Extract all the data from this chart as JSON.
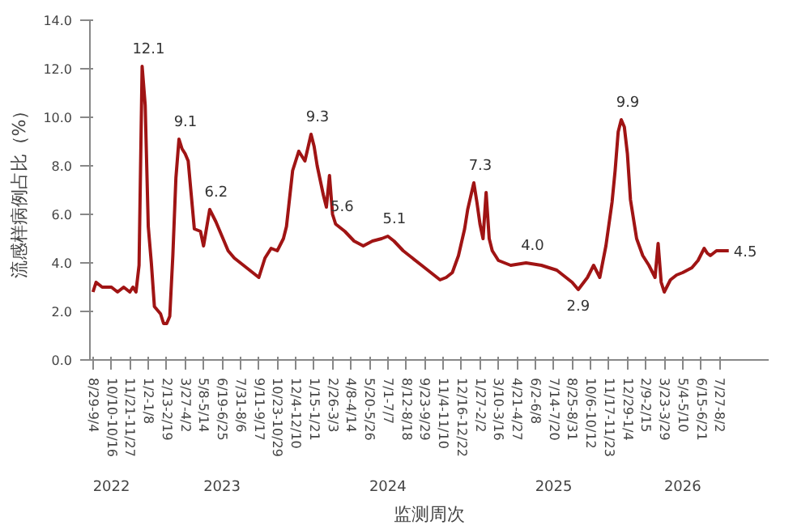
{
  "chart_data": {
    "type": "line",
    "xlabel": "监测周次",
    "ylabel": "流感样病例占比（%）",
    "x": [
      "2022-08-29",
      "2022-09-05",
      "2022-09-19",
      "2022-10-10",
      "2022-10-24",
      "2022-11-07",
      "2022-11-21",
      "2022-11-28",
      "2022-12-05",
      "2022-12-12",
      "2022-12-19",
      "2022-12-26",
      "2023-01-02",
      "2023-01-09",
      "2023-01-16",
      "2023-01-30",
      "2023-02-06",
      "2023-02-13",
      "2023-02-20",
      "2023-02-27",
      "2023-03-06",
      "2023-03-13",
      "2023-03-20",
      "2023-03-27",
      "2023-04-03",
      "2023-04-10",
      "2023-04-17",
      "2023-05-01",
      "2023-05-08",
      "2023-05-22",
      "2023-06-05",
      "2023-06-19",
      "2023-07-03",
      "2023-07-17",
      "2023-07-31",
      "2023-08-21",
      "2023-09-11",
      "2023-09-25",
      "2023-10-09",
      "2023-10-23",
      "2023-11-06",
      "2023-11-13",
      "2023-11-27",
      "2023-12-11",
      "2023-12-18",
      "2023-12-25",
      "2024-01-08",
      "2024-01-15",
      "2024-01-22",
      "2024-02-05",
      "2024-02-12",
      "2024-02-19",
      "2024-02-26",
      "2024-03-04",
      "2024-03-25",
      "2024-04-15",
      "2024-05-06",
      "2024-05-27",
      "2024-06-17",
      "2024-07-01",
      "2024-07-15",
      "2024-08-05",
      "2024-08-26",
      "2024-09-16",
      "2024-10-07",
      "2024-10-28",
      "2024-11-11",
      "2024-11-25",
      "2024-12-09",
      "2024-12-23",
      "2024-12-30",
      "2025-01-13",
      "2025-01-20",
      "2025-01-27",
      "2025-02-03",
      "2025-02-10",
      "2025-02-17",
      "2025-02-24",
      "2025-03-10",
      "2025-04-07",
      "2025-05-12",
      "2025-06-16",
      "2025-07-21",
      "2025-08-11",
      "2025-08-25",
      "2025-09-08",
      "2025-09-29",
      "2025-10-13",
      "2025-10-27",
      "2025-11-10",
      "2025-11-24",
      "2025-12-01",
      "2025-12-08",
      "2025-12-15",
      "2025-12-22",
      "2025-12-29",
      "2026-01-05",
      "2026-01-19",
      "2026-02-02",
      "2026-02-16",
      "2026-03-02",
      "2026-03-09",
      "2026-03-16",
      "2026-03-23",
      "2026-04-06",
      "2026-04-20",
      "2026-05-04",
      "2026-05-25",
      "2026-06-08",
      "2026-06-22",
      "2026-06-29",
      "2026-07-06",
      "2026-07-20",
      "2026-08-03",
      "2026-08-17"
    ],
    "series": [
      {
        "color": "#a01414",
        "values": [
          2.8,
          3.2,
          3.0,
          3.0,
          2.8,
          3.0,
          2.8,
          3.0,
          2.8,
          3.9,
          12.1,
          10.5,
          5.5,
          4.0,
          2.2,
          1.9,
          1.5,
          1.5,
          1.8,
          4.3,
          7.5,
          9.1,
          8.7,
          8.5,
          8.2,
          6.8,
          5.4,
          5.3,
          4.7,
          6.2,
          5.7,
          5.1,
          4.5,
          4.2,
          4.0,
          3.7,
          3.4,
          4.2,
          4.6,
          4.5,
          5.0,
          5.5,
          7.8,
          8.6,
          8.4,
          8.2,
          9.3,
          8.8,
          8.0,
          6.8,
          6.3,
          7.6,
          6.0,
          5.6,
          5.3,
          4.9,
          4.7,
          4.9,
          5.0,
          5.1,
          4.9,
          4.5,
          4.2,
          3.9,
          3.6,
          3.3,
          3.4,
          3.6,
          4.3,
          5.4,
          6.2,
          7.3,
          6.5,
          5.6,
          5.0,
          6.9,
          5.0,
          4.5,
          4.1,
          3.9,
          4.0,
          3.9,
          3.7,
          3.4,
          3.2,
          2.9,
          3.4,
          3.9,
          3.4,
          4.7,
          6.5,
          7.8,
          9.4,
          9.9,
          9.6,
          8.5,
          6.6,
          5.0,
          4.3,
          3.9,
          3.4,
          4.8,
          3.2,
          2.8,
          3.3,
          3.5,
          3.6,
          3.8,
          4.1,
          4.6,
          4.4,
          4.3,
          4.5,
          4.5,
          4.5
        ]
      }
    ],
    "xlim": [
      "2022-08-22",
      "2026-11-16"
    ],
    "ylim": [
      0,
      14
    ],
    "yticks": [
      {
        "value": 0,
        "label": "0.0"
      },
      {
        "value": 2,
        "label": "2.0"
      },
      {
        "value": 4,
        "label": "4.0"
      },
      {
        "value": 6,
        "label": "6.0"
      },
      {
        "value": 8,
        "label": "8.0"
      },
      {
        "value": 10,
        "label": "10.0"
      },
      {
        "value": 12,
        "label": "12.0"
      },
      {
        "value": 14,
        "label": "14.0"
      }
    ],
    "xticks": [
      {
        "value": "2022-08-29",
        "label": "8/29-9/4"
      },
      {
        "value": "2022-10-10",
        "label": "10/10-10/16"
      },
      {
        "value": "2022-11-21",
        "label": "11/21-11/27"
      },
      {
        "value": "2023-01-02",
        "label": "1/2-1/8"
      },
      {
        "value": "2023-02-13",
        "label": "2/13-2/19"
      },
      {
        "value": "2023-03-27",
        "label": "3/27-4/2"
      },
      {
        "value": "2023-05-08",
        "label": "5/8-5/14"
      },
      {
        "value": "2023-06-19",
        "label": "6/19-6/25"
      },
      {
        "value": "2023-07-31",
        "label": "7/31-8/6"
      },
      {
        "value": "2023-09-11",
        "label": "9/11-9/17"
      },
      {
        "value": "2023-10-23",
        "label": "10/23-10/29"
      },
      {
        "value": "2023-12-04",
        "label": "12/4-12/10"
      },
      {
        "value": "2024-01-15",
        "label": "1/15-1/21"
      },
      {
        "value": "2024-02-26",
        "label": "2/26-3/3"
      },
      {
        "value": "2024-04-08",
        "label": "4/8-4/14"
      },
      {
        "value": "2024-05-20",
        "label": "5/20-5/26"
      },
      {
        "value": "2024-07-01",
        "label": "7/1-7/7"
      },
      {
        "value": "2024-08-12",
        "label": "8/12-8/18"
      },
      {
        "value": "2024-09-23",
        "label": "9/23-9/29"
      },
      {
        "value": "2024-11-04",
        "label": "11/4-11/10"
      },
      {
        "value": "2024-12-16",
        "label": "12/16-12/22"
      },
      {
        "value": "2025-01-27",
        "label": "1/27-2/2"
      },
      {
        "value": "2025-03-10",
        "label": "3/10-3/16"
      },
      {
        "value": "2025-04-21",
        "label": "4/21-4/27"
      },
      {
        "value": "2025-06-02",
        "label": "6/2-6/8"
      },
      {
        "value": "2025-07-14",
        "label": "7/14-7/20"
      },
      {
        "value": "2025-08-25",
        "label": "8/25-8/31"
      },
      {
        "value": "2025-10-06",
        "label": "10/6-10/12"
      },
      {
        "value": "2025-11-17",
        "label": "11/17-11/23"
      },
      {
        "value": "2025-12-29",
        "label": "12/29-1/4"
      },
      {
        "value": "2026-02-09",
        "label": "2/9-2/15"
      },
      {
        "value": "2026-03-23",
        "label": "3/23-3/29"
      },
      {
        "value": "2026-05-04",
        "label": "5/4-5/10"
      },
      {
        "value": "2026-06-15",
        "label": "6/15-6/21"
      },
      {
        "value": "2026-07-27",
        "label": "7/27-8/2"
      }
    ],
    "annotations": [
      {
        "text": "12.1",
        "x": "2022-12-19",
        "y": 12.1
      },
      {
        "text": "9.1",
        "x": "2023-03-13",
        "y": 9.1
      },
      {
        "text": "6.2",
        "x": "2023-05-22",
        "y": 6.2
      },
      {
        "text": "9.3",
        "x": "2024-01-08",
        "y": 9.3
      },
      {
        "text": "5.6",
        "x": "2024-03-04",
        "y": 5.6
      },
      {
        "text": "5.1",
        "x": "2024-07-01",
        "y": 5.1
      },
      {
        "text": "7.3",
        "x": "2025-01-13",
        "y": 7.3
      },
      {
        "text": "4.0",
        "x": "2025-05-12",
        "y": 4.0
      },
      {
        "text": "2.9",
        "x": "2025-09-08",
        "y": 2.9
      },
      {
        "text": "9.9",
        "x": "2025-12-15",
        "y": 9.9
      },
      {
        "text": "4.5",
        "x": "2026-08-17",
        "y": 4.5
      },
      "2022",
      "2023",
      "2024",
      "2025",
      "2026"
    ],
    "grid": false
  }
}
